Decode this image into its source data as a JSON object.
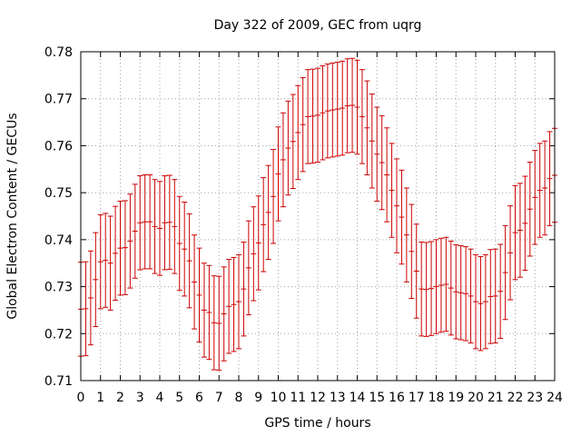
{
  "chart_data": {
    "type": "scatter",
    "style": "errorbars",
    "title": "Day 322 of 2009, GEC from uqrg",
    "xlabel": "GPS time / hours",
    "ylabel": "Global Electron Content / GECUs",
    "xlim": [
      0,
      24
    ],
    "ylim": [
      0.71,
      0.78
    ],
    "xticks": [
      0,
      1,
      2,
      3,
      4,
      5,
      6,
      7,
      8,
      9,
      10,
      11,
      12,
      13,
      14,
      15,
      16,
      17,
      18,
      19,
      20,
      21,
      22,
      23,
      24
    ],
    "yticks": [
      "0.71",
      "0.72",
      "0.73",
      "0.74",
      "0.75",
      "0.76",
      "0.77",
      "0.78"
    ],
    "grid": true,
    "error": 0.01,
    "color": "#cc0000",
    "series": [
      {
        "x": [
          0,
          0.25,
          0.5,
          0.75,
          1,
          1.25,
          1.5,
          1.75,
          2,
          2.25,
          2.5,
          2.75,
          3,
          3.25,
          3.5,
          3.75,
          4,
          4.25,
          4.5,
          4.75,
          5,
          5.25,
          5.5,
          5.75,
          6,
          6.25,
          6.5,
          6.75,
          7,
          7.25,
          7.5,
          7.75,
          8,
          8.25,
          8.5,
          8.75,
          9,
          9.25,
          9.5,
          9.75,
          10,
          10.25,
          10.5,
          10.75,
          11,
          11.25,
          11.5,
          11.75,
          12,
          12.25,
          12.5,
          12.75,
          13,
          13.25,
          13.5,
          13.75,
          14,
          14.25,
          14.5,
          14.75,
          15,
          15.25,
          15.5,
          15.75,
          16,
          16.25,
          16.5,
          16.75,
          17,
          17.25,
          17.5,
          17.75,
          18,
          18.25,
          18.5,
          18.75,
          19,
          19.25,
          19.5,
          19.75,
          20,
          20.25,
          20.5,
          20.75,
          21,
          21.25,
          21.5,
          21.75,
          22,
          22.25,
          22.5,
          22.75,
          23,
          23.25,
          23.5,
          23.75,
          24
        ],
        "y": [
          0.7252,
          0.7253,
          0.7276,
          0.7315,
          0.7353,
          0.7356,
          0.735,
          0.7371,
          0.7382,
          0.7383,
          0.7397,
          0.7418,
          0.7436,
          0.7438,
          0.7438,
          0.7428,
          0.7424,
          0.7436,
          0.7437,
          0.7428,
          0.7392,
          0.738,
          0.7355,
          0.731,
          0.7282,
          0.725,
          0.7245,
          0.7223,
          0.7222,
          0.7242,
          0.7258,
          0.7262,
          0.7268,
          0.7295,
          0.734,
          0.737,
          0.7393,
          0.7432,
          0.7458,
          0.7492,
          0.754,
          0.757,
          0.7595,
          0.7609,
          0.7628,
          0.7645,
          0.7662,
          0.7663,
          0.7665,
          0.767,
          0.7674,
          0.7676,
          0.7678,
          0.768,
          0.7685,
          0.7686,
          0.7682,
          0.7662,
          0.7638,
          0.761,
          0.7582,
          0.7564,
          0.7538,
          0.7505,
          0.7472,
          0.7448,
          0.741,
          0.7375,
          0.7333,
          0.7295,
          0.7294,
          0.7296,
          0.73,
          0.7303,
          0.7305,
          0.7297,
          0.7289,
          0.7287,
          0.7285,
          0.728,
          0.7268,
          0.7264,
          0.7268,
          0.7279,
          0.728,
          0.729,
          0.733,
          0.7372,
          0.7415,
          0.742,
          0.7435,
          0.7465,
          0.749,
          0.7505,
          0.751,
          0.753,
          0.7537
        ]
      }
    ]
  }
}
